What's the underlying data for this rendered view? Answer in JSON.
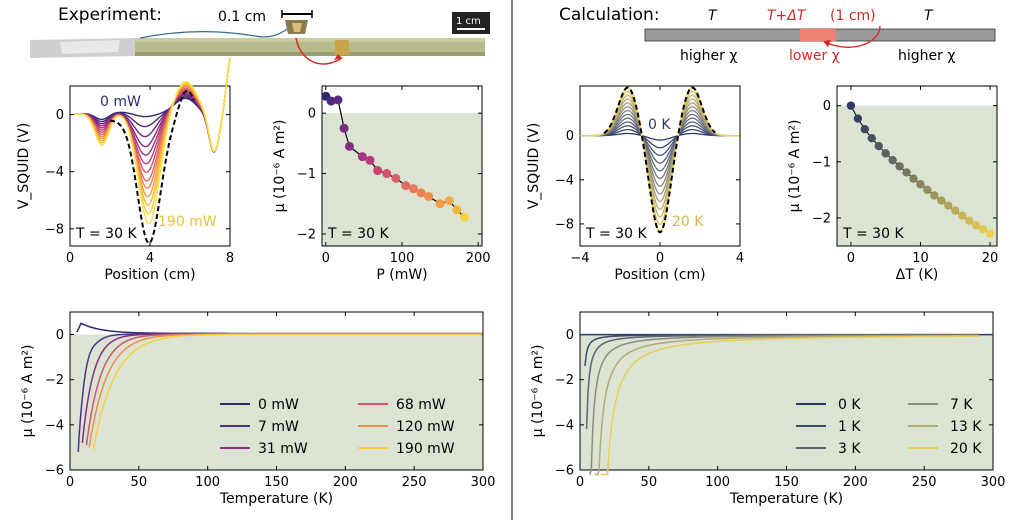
{
  "header": {
    "left_title": "Experiment:",
    "right_title": "Calculation:",
    "scale_bar_small": "0.1 cm",
    "scale_bar_big": "1 cm",
    "calc_T_left": "T",
    "calc_T_mid": "T+ΔT",
    "calc_T_mid_len": "(1 cm)",
    "calc_T_right": "T",
    "calc_chi_left": "higher χ",
    "calc_chi_mid": "lower χ",
    "calc_chi_right": "higher χ"
  },
  "chart_data": [
    {
      "id": "exp-vsquid",
      "type": "line",
      "xlabel": "Position (cm)",
      "ylabel": "V_SQUID (V)",
      "ylim": [
        -9.2,
        2
      ],
      "xlim": [
        0,
        8
      ],
      "xticks": [
        "0",
        "4",
        "8"
      ],
      "yticks": [
        "0",
        "-4",
        "-8"
      ],
      "annotation_T": "T = 30 K",
      "label_first": "0 mW",
      "label_last": "190 mW",
      "colors": [
        "#2b2a6e",
        "#4b2a7a",
        "#6a2a7e",
        "#892c80",
        "#a6337d",
        "#bf4176",
        "#d3546c",
        "#e26b5f",
        "#ec8352",
        "#f29b46",
        "#f5b53d",
        "#f7cf3c",
        "#f9e54b"
      ],
      "min_positions": [
        3.7,
        3.72,
        3.74,
        3.76,
        3.78,
        3.8,
        3.82,
        3.84,
        3.86,
        3.88,
        3.9,
        3.92,
        3.94
      ],
      "min_values": [
        -0.3,
        -1.0,
        -1.7,
        -2.4,
        -3.0,
        -3.6,
        -4.2,
        -4.8,
        -5.3,
        -5.9,
        -6.5,
        -7.1,
        -7.8
      ]
    },
    {
      "id": "exp-mu-power",
      "type": "scatter",
      "xlabel": "P (mW)",
      "ylabel": "μ (10⁻⁶ A m²)",
      "xlim": [
        -5,
        205
      ],
      "ylim": [
        -2.2,
        0.45
      ],
      "xticks": [
        "0",
        "100",
        "200"
      ],
      "yticks": [
        "0",
        "-1",
        "-2"
      ],
      "annotation_T": "T = 30 K",
      "x": [
        0,
        7,
        16,
        24,
        31,
        48,
        58,
        68,
        80,
        92,
        105,
        115,
        125,
        135,
        150,
        162,
        172,
        182
      ],
      "y": [
        0.28,
        0.2,
        0.22,
        -0.25,
        -0.55,
        -0.72,
        -0.78,
        -0.95,
        -1.0,
        -1.08,
        -1.2,
        -1.25,
        -1.32,
        -1.38,
        -1.5,
        -1.45,
        -1.6,
        -1.72
      ]
    },
    {
      "id": "calc-vsquid",
      "type": "line",
      "xlabel": "Position (cm)",
      "ylabel": "V_SQUID (V)",
      "xlim": [
        -4,
        4
      ],
      "ylim": [
        -10,
        4.5
      ],
      "xticks": [
        "-4",
        "0",
        "4"
      ],
      "yticks": [
        "0",
        "-4",
        "-8"
      ],
      "annotation_T": "T = 30 K",
      "label_first": "0 K",
      "label_last": "20 K",
      "amplitudes": [
        0.4,
        1.1,
        1.8,
        2.5,
        3.2,
        3.9,
        4.6,
        5.3,
        6.0,
        6.7,
        7.4,
        8.1,
        8.8
      ],
      "colors": [
        "#2b3a67",
        "#37466e",
        "#455274",
        "#545f79",
        "#636b7c",
        "#73777e",
        "#83837e",
        "#93907c",
        "#a49c78",
        "#b6a972",
        "#c8b66a",
        "#dac35f",
        "#ecd152"
      ]
    },
    {
      "id": "calc-mu-dT",
      "type": "scatter",
      "xlabel": "ΔT (K)",
      "ylabel": "μ (10⁻⁶ A m²)",
      "xlim": [
        -2,
        21
      ],
      "ylim": [
        -2.5,
        0.35
      ],
      "xticks": [
        "0",
        "10",
        "20"
      ],
      "yticks": [
        "0",
        "-1",
        "-2"
      ],
      "annotation_T": "T = 30 K",
      "x": [
        0,
        1,
        2,
        3,
        4,
        5,
        6,
        7,
        8,
        9,
        10,
        11,
        12,
        13,
        14,
        15,
        16,
        17,
        18,
        19,
        20
      ],
      "y": [
        0,
        -0.23,
        -0.42,
        -0.58,
        -0.72,
        -0.85,
        -0.97,
        -1.08,
        -1.19,
        -1.3,
        -1.4,
        -1.5,
        -1.6,
        -1.69,
        -1.78,
        -1.87,
        -1.96,
        -2.05,
        -2.13,
        -2.2,
        -2.28
      ]
    },
    {
      "id": "exp-mu-temp",
      "type": "line",
      "xlabel": "Temperature (K)",
      "ylabel": "μ (10⁻⁶ A m²)",
      "xlim": [
        0,
        300
      ],
      "ylim": [
        -6,
        1
      ],
      "xticks": [
        "0",
        "50",
        "100",
        "150",
        "200",
        "250",
        "300"
      ],
      "yticks": [
        "0",
        "-2",
        "-4",
        "-6"
      ],
      "series": [
        {
          "name": "0 mW",
          "color": "#2b2a6e",
          "tmin": 5,
          "depth": 0,
          "bump": 0.5
        },
        {
          "name": "7 mW",
          "color": "#4a3288",
          "tmin": 6,
          "depth": 5.2,
          "bump": 0.3
        },
        {
          "name": "31 mW",
          "color": "#8a2c80",
          "tmin": 9,
          "depth": 4.8,
          "bump": 0
        },
        {
          "name": "68 mW",
          "color": "#d3546c",
          "tmin": 12,
          "depth": 4.9,
          "bump": 0
        },
        {
          "name": "120 mW",
          "color": "#f08a4e",
          "tmin": 14,
          "depth": 5.0,
          "bump": 0
        },
        {
          "name": "190 mW",
          "color": "#f7cf3c",
          "tmin": 17,
          "depth": 5.1,
          "bump": 0
        }
      ]
    },
    {
      "id": "calc-mu-temp",
      "type": "line",
      "xlabel": "Temperature (K)",
      "ylabel": "μ (10⁻⁶ A m²)",
      "xlim": [
        0,
        300
      ],
      "ylim": [
        -6,
        1
      ],
      "xticks": [
        "0",
        "50",
        "100",
        "150",
        "200",
        "250",
        "300"
      ],
      "yticks": [
        "0",
        "-2",
        "-4",
        "-6"
      ],
      "series": [
        {
          "name": "0 K",
          "color": "#2b3a67",
          "k": 0
        },
        {
          "name": "1 K",
          "color": "#3e4a6e",
          "k": 1
        },
        {
          "name": "3 K",
          "color": "#5d6274",
          "k": 3
        },
        {
          "name": "7 K",
          "color": "#8a8a7e",
          "k": 7
        },
        {
          "name": "13 K",
          "color": "#b4a873",
          "k": 13
        },
        {
          "name": "20 K",
          "color": "#e6cc5a",
          "k": 20
        }
      ]
    }
  ],
  "colors": {
    "green_bg": "#dbe4d3",
    "red_accent": "#d62728",
    "rod_green": "#b8bb8a"
  }
}
